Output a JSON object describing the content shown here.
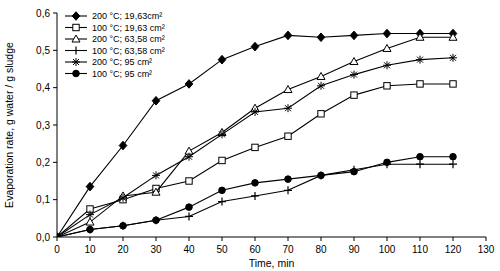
{
  "chart_data": {
    "type": "line",
    "x_label": "Time, min",
    "y_label": "Evaporation rate, g water / g sludge",
    "x": [
      0,
      10,
      20,
      30,
      40,
      50,
      60,
      70,
      80,
      90,
      100,
      110,
      120
    ],
    "xlim": [
      0,
      130
    ],
    "xticks": [
      0,
      10,
      20,
      30,
      40,
      50,
      60,
      70,
      80,
      90,
      100,
      110,
      120,
      130
    ],
    "ylim": [
      0,
      0.6
    ],
    "yticks": [
      {
        "value": 0,
        "label": "0,0"
      },
      {
        "value": 0.1,
        "label": "0,1"
      },
      {
        "value": 0.2,
        "label": "0,2"
      },
      {
        "value": 0.3,
        "label": "0,3"
      },
      {
        "value": 0.4,
        "label": "0,4"
      },
      {
        "value": 0.5,
        "label": "0,5"
      },
      {
        "value": 0.6,
        "label": "0,6"
      }
    ],
    "grid": false,
    "legend": "upper left",
    "series": [
      {
        "name": "200 °C; 19,63cm²",
        "color": "#000000",
        "marker": "diamond",
        "line_style": "solid",
        "values": [
          0,
          0.135,
          0.245,
          0.365,
          0.41,
          0.475,
          0.51,
          0.54,
          0.535,
          0.54,
          0.545,
          0.545,
          0.545
        ]
      },
      {
        "name": "100 °C; 19,63 cm²",
        "color": "#000000",
        "marker": "square-open",
        "line_style": "solid",
        "values": [
          0,
          0.075,
          0.1,
          0.13,
          0.15,
          0.205,
          0.24,
          0.27,
          0.33,
          0.38,
          0.405,
          0.41,
          0.41
        ]
      },
      {
        "name": "200 °C; 63,58 cm²",
        "color": "#000000",
        "marker": "triangle-open",
        "line_style": "solid",
        "values": [
          0,
          0.04,
          0.11,
          0.12,
          0.23,
          0.28,
          0.345,
          0.395,
          0.43,
          0.47,
          0.505,
          0.535,
          0.535
        ]
      },
      {
        "name": "100 °C; 63,58 cm²",
        "color": "#000000",
        "marker": "plus",
        "line_style": "solid",
        "values": [
          0,
          0.02,
          0.03,
          0.045,
          0.055,
          0.095,
          0.11,
          0.125,
          0.165,
          0.18,
          0.195,
          0.195,
          0.195
        ]
      },
      {
        "name": "200 °C; 95 cm²",
        "color": "#000000",
        "marker": "asterisk",
        "line_style": "solid",
        "values": [
          0,
          0.06,
          0.105,
          0.165,
          0.215,
          0.275,
          0.335,
          0.345,
          0.405,
          0.435,
          0.46,
          0.475,
          0.48
        ]
      },
      {
        "name": "100 °C; 95 cm²",
        "color": "#000000",
        "marker": "circle",
        "line_style": "solid",
        "values": [
          0,
          0.02,
          0.03,
          0.045,
          0.08,
          0.125,
          0.145,
          0.155,
          0.165,
          0.175,
          0.2,
          0.215,
          0.215
        ]
      }
    ]
  }
}
